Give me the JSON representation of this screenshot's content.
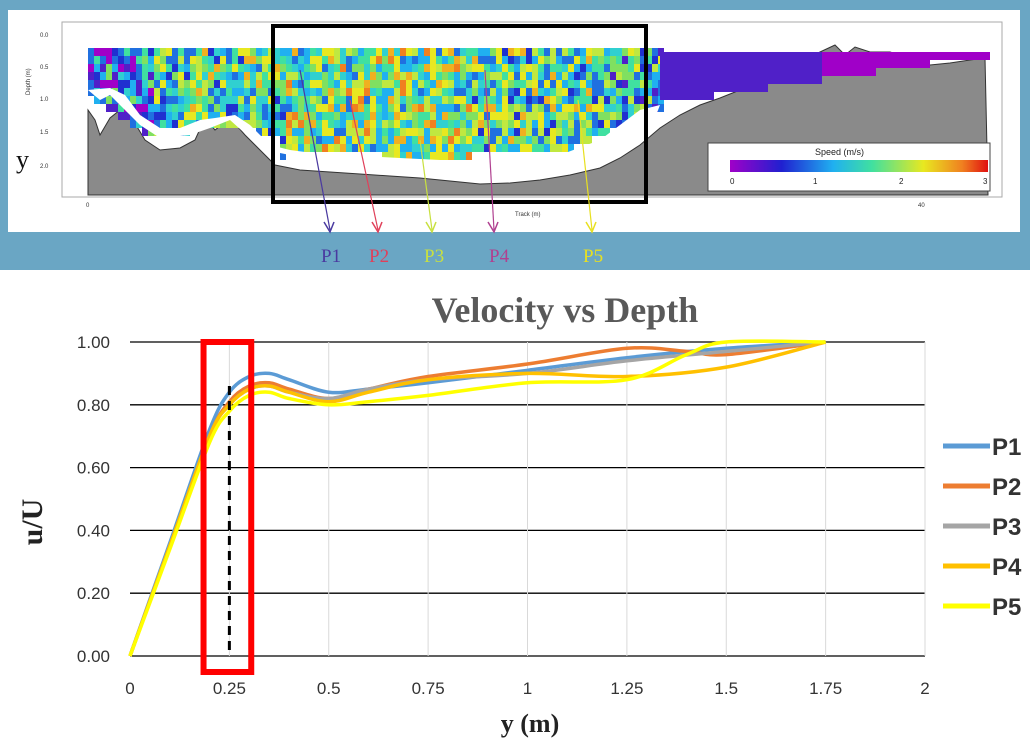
{
  "adcp_panel": {
    "y_symbol": "y",
    "depth_label": "Depth (m)",
    "track_label": "Track (m)",
    "depth_ticks": [
      "0.0",
      "0.5",
      "1.0",
      "1.5",
      "2.0"
    ],
    "track_ticks": [
      "0",
      "40"
    ],
    "legend_title": "Speed (m/s)",
    "legend_ticks": [
      "0",
      "1",
      "2",
      "3"
    ],
    "profile_labels": [
      {
        "label": "P1",
        "color": "#4a3aa0"
      },
      {
        "label": "P2",
        "color": "#e0405a"
      },
      {
        "label": "P3",
        "color": "#c8e040"
      },
      {
        "label": "P4",
        "color": "#b04090"
      },
      {
        "label": "P5",
        "color": "#e8e020"
      }
    ]
  },
  "chart_data": {
    "type": "line",
    "title": "Velocity vs Depth",
    "xlabel": "y (m)",
    "ylabel": "u/U",
    "xlim": [
      0,
      2
    ],
    "ylim": [
      0,
      1
    ],
    "x_ticks": [
      "0",
      "0.25",
      "0.5",
      "0.75",
      "1",
      "1.25",
      "1.5",
      "1.75",
      "2"
    ],
    "y_ticks": [
      "0.00",
      "0.20",
      "0.40",
      "0.60",
      "0.80",
      "1.00"
    ],
    "grid": true,
    "legend_position": "right",
    "highlight_x": 0.25,
    "series": [
      {
        "name": "P1",
        "color": "#5b9bd5",
        "points": [
          [
            0,
            0
          ],
          [
            0.1,
            0.36
          ],
          [
            0.2,
            0.72
          ],
          [
            0.25,
            0.84
          ],
          [
            0.3,
            0.89
          ],
          [
            0.35,
            0.9
          ],
          [
            0.4,
            0.88
          ],
          [
            0.5,
            0.84
          ],
          [
            0.6,
            0.85
          ],
          [
            0.75,
            0.87
          ],
          [
            1.0,
            0.91
          ],
          [
            1.25,
            0.95
          ],
          [
            1.5,
            0.98
          ],
          [
            1.75,
            1.0
          ]
        ]
      },
      {
        "name": "P2",
        "color": "#ed7d31",
        "points": [
          [
            0,
            0
          ],
          [
            0.1,
            0.35
          ],
          [
            0.2,
            0.7
          ],
          [
            0.25,
            0.81
          ],
          [
            0.3,
            0.86
          ],
          [
            0.35,
            0.87
          ],
          [
            0.4,
            0.85
          ],
          [
            0.5,
            0.82
          ],
          [
            0.6,
            0.85
          ],
          [
            0.75,
            0.89
          ],
          [
            1.0,
            0.93
          ],
          [
            1.25,
            0.98
          ],
          [
            1.4,
            0.97
          ],
          [
            1.5,
            0.96
          ],
          [
            1.75,
            1.0
          ]
        ]
      },
      {
        "name": "P3",
        "color": "#a5a5a5",
        "points": [
          [
            0,
            0
          ],
          [
            0.1,
            0.35
          ],
          [
            0.2,
            0.7
          ],
          [
            0.25,
            0.8
          ],
          [
            0.3,
            0.85
          ],
          [
            0.35,
            0.86
          ],
          [
            0.4,
            0.84
          ],
          [
            0.5,
            0.82
          ],
          [
            0.6,
            0.85
          ],
          [
            0.75,
            0.88
          ],
          [
            1.0,
            0.9
          ],
          [
            1.25,
            0.94
          ],
          [
            1.5,
            0.97
          ],
          [
            1.75,
            1.0
          ]
        ]
      },
      {
        "name": "P4",
        "color": "#ffc000",
        "points": [
          [
            0,
            0
          ],
          [
            0.1,
            0.35
          ],
          [
            0.2,
            0.7
          ],
          [
            0.25,
            0.8
          ],
          [
            0.3,
            0.85
          ],
          [
            0.35,
            0.86
          ],
          [
            0.4,
            0.84
          ],
          [
            0.5,
            0.81
          ],
          [
            0.6,
            0.84
          ],
          [
            0.75,
            0.88
          ],
          [
            1.0,
            0.9
          ],
          [
            1.25,
            0.89
          ],
          [
            1.5,
            0.92
          ],
          [
            1.75,
            1.0
          ]
        ]
      },
      {
        "name": "P5",
        "color": "#ffff00",
        "points": [
          [
            0,
            0
          ],
          [
            0.1,
            0.34
          ],
          [
            0.2,
            0.68
          ],
          [
            0.25,
            0.78
          ],
          [
            0.3,
            0.83
          ],
          [
            0.35,
            0.84
          ],
          [
            0.4,
            0.82
          ],
          [
            0.5,
            0.8
          ],
          [
            0.6,
            0.81
          ],
          [
            0.75,
            0.83
          ],
          [
            1.0,
            0.87
          ],
          [
            1.25,
            0.88
          ],
          [
            1.4,
            0.96
          ],
          [
            1.5,
            1.0
          ],
          [
            1.75,
            1.0
          ]
        ]
      }
    ]
  }
}
